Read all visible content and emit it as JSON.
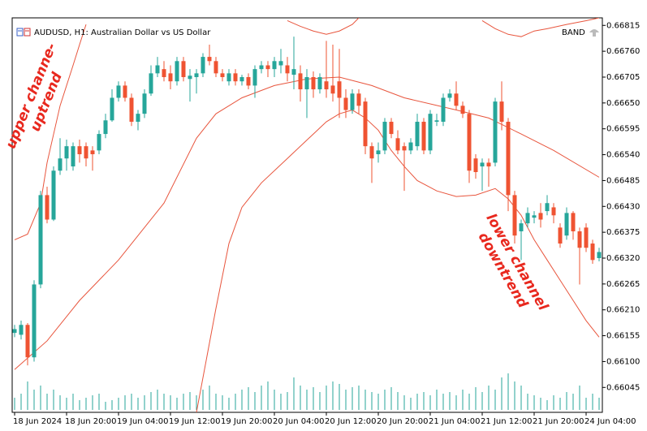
{
  "chart_data": {
    "type": "candlestick",
    "title": "AUDUSD, H1:  Australian Dollar vs US Dollar",
    "indicator_label": "BAND",
    "categories": [
      "18 Jun 2024",
      null,
      null,
      null,
      null,
      null,
      null,
      null,
      "18 Jun 20:00",
      null,
      null,
      null,
      null,
      null,
      null,
      null,
      "19 Jun 04:00",
      null,
      null,
      null,
      null,
      null,
      null,
      null,
      "19 Jun 12:00",
      null,
      null,
      null,
      null,
      null,
      null,
      null,
      "19 Jun 20:00",
      null,
      null,
      null,
      null,
      null,
      null,
      null,
      "20 Jun 04:00",
      null,
      null,
      null,
      null,
      null,
      null,
      null,
      "20 Jun 12:00",
      null,
      null,
      null,
      null,
      null,
      null,
      null,
      "20 Jun 20:00",
      null,
      null,
      null,
      null,
      null,
      null,
      null,
      "21 Jun 04:00",
      null,
      null,
      null,
      null,
      null,
      null,
      null,
      "21 Jun 12:00",
      null,
      null,
      null,
      null,
      null,
      null,
      null,
      "21 Jun 20:00",
      null,
      null,
      null,
      null,
      null,
      null,
      null,
      "24 Jun 04:00",
      null,
      null
    ],
    "open": [
      0.66161,
      0.66157,
      0.66178,
      0.66109,
      0.66264,
      0.66454,
      0.66402,
      0.66506,
      0.66532,
      0.66515,
      0.66558,
      0.66558,
      0.66549,
      0.66549,
      0.66584,
      0.66613,
      0.66661,
      0.66687,
      0.66661,
      0.6661,
      0.66627,
      0.6667,
      0.66713,
      0.66722,
      0.66713,
      0.66696,
      0.66739,
      0.66701,
      0.66705,
      0.66713,
      0.66748,
      0.66739,
      0.66713,
      0.66696,
      0.66713,
      0.66696,
      0.66705,
      0.66687,
      0.66722,
      0.6673,
      0.66722,
      0.6673,
      0.6673,
      0.6671,
      0.66713,
      0.66679,
      0.66705,
      0.66679,
      0.66696,
      0.66687,
      0.66696,
      0.66661,
      0.66635,
      0.6667,
      0.66653,
      0.66558,
      0.66541,
      0.66549,
      0.6661,
      0.66575,
      0.66558,
      0.66549,
      0.66558,
      0.6661,
      0.66549,
      0.6661,
      0.6661,
      0.66661,
      0.6667,
      0.66644,
      0.66627,
      0.66532,
      0.66515,
      0.66523,
      0.66523,
      0.66653,
      0.6661,
      0.66454,
      0.66377,
      0.66394,
      0.66406,
      0.66416,
      0.6642,
      0.66428,
      0.66385,
      0.66368,
      0.66416,
      0.66377,
      0.66385,
      0.66351,
      0.6632
    ],
    "high": [
      0.66178,
      0.66187,
      0.66182,
      0.66273,
      0.66463,
      0.66472,
      0.66515,
      0.66575,
      0.66572,
      0.66566,
      0.66572,
      0.66566,
      0.66558,
      0.66592,
      0.66627,
      0.66679,
      0.66696,
      0.66696,
      0.6667,
      0.66635,
      0.66679,
      0.6673,
      0.66748,
      0.66739,
      0.6673,
      0.66748,
      0.66748,
      0.66722,
      0.66722,
      0.66756,
      0.66774,
      0.66748,
      0.66722,
      0.66722,
      0.66722,
      0.6671,
      0.66713,
      0.6673,
      0.66739,
      0.66739,
      0.66748,
      0.66765,
      0.66748,
      0.66791,
      0.6673,
      0.66722,
      0.66717,
      0.66713,
      0.66782,
      0.66774,
      0.66765,
      0.66679,
      0.66679,
      0.66679,
      0.66661,
      0.66566,
      0.66566,
      0.66618,
      0.66618,
      0.66592,
      0.66566,
      0.66575,
      0.66627,
      0.66618,
      0.66635,
      0.66627,
      0.6667,
      0.66679,
      0.66696,
      0.66653,
      0.66635,
      0.66541,
      0.66532,
      0.66532,
      0.66661,
      0.66696,
      0.66618,
      0.66463,
      0.66402,
      0.66428,
      0.6642,
      0.66437,
      0.66454,
      0.66437,
      0.66394,
      0.66428,
      0.6642,
      0.66385,
      0.66394,
      0.66359,
      0.66342
    ],
    "low": [
      0.66152,
      0.66147,
      0.66092,
      0.661,
      0.66256,
      0.66394,
      0.66399,
      0.66497,
      0.66506,
      0.66506,
      0.66523,
      0.66515,
      0.66506,
      0.66541,
      0.66575,
      0.6661,
      0.66653,
      0.66653,
      0.66601,
      0.66592,
      0.66618,
      0.66665,
      0.66705,
      0.66696,
      0.66679,
      0.66687,
      0.66696,
      0.66653,
      0.6667,
      0.66705,
      0.6673,
      0.66705,
      0.66696,
      0.66687,
      0.66687,
      0.66687,
      0.66679,
      0.66661,
      0.66713,
      0.66705,
      0.66705,
      0.66713,
      0.66696,
      0.66679,
      0.66653,
      0.66618,
      0.66661,
      0.6667,
      0.66661,
      0.66653,
      0.66618,
      0.66618,
      0.66627,
      0.66627,
      0.66541,
      0.6648,
      0.66523,
      0.66541,
      0.66575,
      0.66541,
      0.66463,
      0.66541,
      0.66549,
      0.66541,
      0.66541,
      0.66601,
      0.66601,
      0.66653,
      0.66635,
      0.66618,
      0.6648,
      0.66489,
      0.66463,
      0.66472,
      0.66515,
      0.66592,
      0.6642,
      0.66351,
      0.66316,
      0.66385,
      0.66394,
      0.66385,
      0.66411,
      0.66394,
      0.66342,
      0.66359,
      0.66359,
      0.66264,
      0.66333,
      0.66308,
      0.66313
    ],
    "close": [
      0.66169,
      0.66178,
      0.66109,
      0.66264,
      0.66454,
      0.66402,
      0.66506,
      0.66532,
      0.66558,
      0.66558,
      0.66541,
      0.66532,
      0.66541,
      0.66584,
      0.66613,
      0.66661,
      0.66687,
      0.66661,
      0.6661,
      0.66627,
      0.6667,
      0.66713,
      0.6673,
      0.66705,
      0.66696,
      0.66739,
      0.66705,
      0.66708,
      0.66713,
      0.66748,
      0.66739,
      0.66713,
      0.66705,
      0.66713,
      0.66696,
      0.66705,
      0.66687,
      0.66722,
      0.6673,
      0.66722,
      0.66739,
      0.66739,
      0.66713,
      0.66722,
      0.66679,
      0.66705,
      0.66679,
      0.66705,
      0.66679,
      0.6667,
      0.66661,
      0.66635,
      0.6667,
      0.66644,
      0.66558,
      0.66532,
      0.66549,
      0.6661,
      0.66584,
      0.66549,
      0.66549,
      0.66566,
      0.6661,
      0.66549,
      0.66627,
      0.66613,
      0.66661,
      0.6667,
      0.66644,
      0.66627,
      0.66506,
      0.66503,
      0.66523,
      0.66515,
      0.66653,
      0.6661,
      0.66454,
      0.66368,
      0.66394,
      0.66416,
      0.66411,
      0.66402,
      0.66437,
      0.66411,
      0.66351,
      0.66416,
      0.66377,
      0.66342,
      0.66342,
      0.66316,
      0.66333
    ],
    "up_color": "#26a69a",
    "down_color": "#ef5332",
    "volumes": [
      15,
      20,
      35,
      25,
      30,
      20,
      25,
      18,
      15,
      20,
      12,
      15,
      18,
      20,
      10,
      12,
      15,
      18,
      20,
      15,
      18,
      22,
      25,
      20,
      18,
      15,
      20,
      22,
      18,
      25,
      30,
      20,
      18,
      15,
      20,
      25,
      28,
      22,
      30,
      35,
      25,
      20,
      22,
      40,
      30,
      25,
      28,
      22,
      30,
      35,
      32,
      25,
      28,
      30,
      25,
      22,
      20,
      25,
      28,
      22,
      18,
      15,
      20,
      22,
      18,
      25,
      20,
      22,
      18,
      25,
      20,
      28,
      22,
      30,
      25,
      40,
      45,
      35,
      30,
      20,
      18,
      15,
      12,
      18,
      15,
      22,
      20,
      30,
      15,
      20,
      15
    ],
    "volume_color": "#26a69a",
    "volume_ylim": [
      0,
      100
    ],
    "bands": {
      "color": "#e8553d",
      "lines": [
        {
          "x": [
            0,
            2,
            4,
            5,
            7,
            9,
            10,
            11
          ],
          "values": [
            0.66359,
            0.66371,
            0.66437,
            0.66523,
            0.66644,
            0.6673,
            0.66774,
            0.66817
          ]
        },
        {
          "x": [
            42,
            44,
            46,
            48,
            50,
            52,
            53
          ],
          "values": [
            0.66825,
            0.66813,
            0.66803,
            0.66796,
            0.66803,
            0.66817,
            0.66831
          ]
        },
        {
          "x": [
            72,
            74,
            76,
            78,
            80,
            82,
            85,
            88,
            90
          ],
          "values": [
            0.66825,
            0.66808,
            0.66796,
            0.66791,
            0.66803,
            0.66808,
            0.66817,
            0.66825,
            0.66831
          ]
        },
        {
          "x": [
            0,
            5,
            10,
            16,
            23,
            28,
            31,
            35,
            40,
            45,
            50,
            55,
            60,
            68,
            73,
            78,
            83,
            90
          ],
          "values": [
            0.66083,
            0.66144,
            0.6623,
            0.66316,
            0.66437,
            0.66575,
            0.66627,
            0.66661,
            0.66687,
            0.66701,
            0.66705,
            0.66687,
            0.66661,
            0.66635,
            0.66618,
            0.66584,
            0.66549,
            0.66492
          ]
        },
        {
          "x": [
            28,
            31,
            33,
            35,
            38,
            42,
            46,
            48,
            50,
            52,
            54,
            56,
            58,
            60,
            62,
            65,
            68,
            71,
            74,
            76,
            78,
            80,
            82,
            84,
            86,
            88,
            90
          ],
          "values": [
            0.65992,
            0.66213,
            0.66351,
            0.66428,
            0.6648,
            0.66532,
            0.66584,
            0.6661,
            0.66627,
            0.66635,
            0.66618,
            0.66592,
            0.66549,
            0.66515,
            0.66485,
            0.66463,
            0.66451,
            0.66454,
            0.66468,
            0.66446,
            0.66411,
            0.66359,
            0.66316,
            0.66273,
            0.6623,
            0.66187,
            0.66152
          ]
        }
      ]
    },
    "annotations": [
      {
        "lines": [
          "upper channe-",
          "uptrend"
        ],
        "color": "#e8281e"
      },
      {
        "lines": [
          "lower channel",
          "downtrend"
        ],
        "color": "#e8281e"
      }
    ],
    "ylim": [
      0.65992,
      0.66831
    ],
    "yticks": [
      0.66815,
      {
        "value": 0.6676,
        "label": "0.66760"
      },
      0.66705,
      {
        "value": 0.6665,
        "label": "0.66650"
      },
      0.66595,
      {
        "value": 0.6654,
        "label": "0.66540"
      },
      0.66485,
      {
        "value": 0.6643,
        "label": "0.66430"
      },
      0.66375,
      {
        "value": 0.6632,
        "label": "0.66320"
      },
      0.66265,
      {
        "value": 0.6621,
        "label": "0.66210"
      },
      0.66155,
      {
        "value": 0.661,
        "label": "0.66100"
      },
      0.66045
    ]
  }
}
